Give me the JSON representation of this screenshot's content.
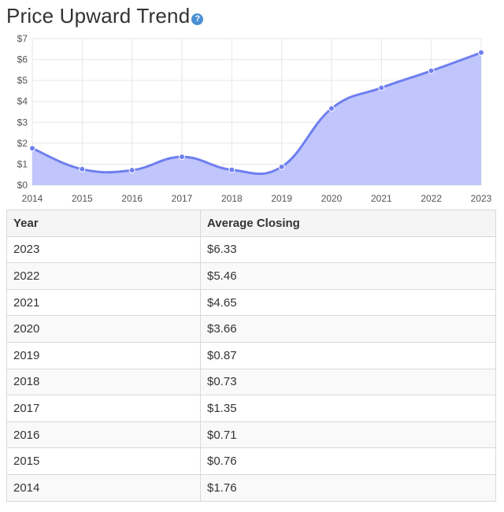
{
  "header": {
    "title": "Price Upward Trend",
    "help_icon": "question-circle-icon",
    "help_glyph": "?"
  },
  "colors": {
    "line": "#6f7ff0",
    "fill": "#b9c0fb",
    "grid": "#e6e6e6",
    "help_icon": "#4a90d6"
  },
  "chart_data": {
    "type": "area",
    "title": "",
    "xlabel": "",
    "ylabel": "",
    "x": [
      2014,
      2015,
      2016,
      2017,
      2018,
      2019,
      2020,
      2021,
      2022,
      2023
    ],
    "series": [
      {
        "values": [
          1.76,
          0.76,
          0.71,
          1.35,
          0.73,
          0.87,
          3.66,
          4.65,
          5.46,
          6.33
        ]
      }
    ],
    "ylim": [
      0,
      7
    ],
    "yticks": [
      "$0",
      "$1",
      "$2",
      "$3",
      "$4",
      "$5",
      "$6",
      "$7"
    ],
    "xticks": [
      "2014",
      "2015",
      "2016",
      "2017",
      "2018",
      "2019",
      "2020",
      "2021",
      "2022",
      "2023"
    ],
    "grid": true,
    "smooth": true,
    "markers": true
  },
  "table": {
    "headers": [
      "Year",
      "Average Closing"
    ],
    "rows": [
      [
        "2023",
        "$6.33"
      ],
      [
        "2022",
        "$5.46"
      ],
      [
        "2021",
        "$4.65"
      ],
      [
        "2020",
        "$3.66"
      ],
      [
        "2019",
        "$0.87"
      ],
      [
        "2018",
        "$0.73"
      ],
      [
        "2017",
        "$1.35"
      ],
      [
        "2016",
        "$0.71"
      ],
      [
        "2015",
        "$0.76"
      ],
      [
        "2014",
        "$1.76"
      ]
    ]
  }
}
